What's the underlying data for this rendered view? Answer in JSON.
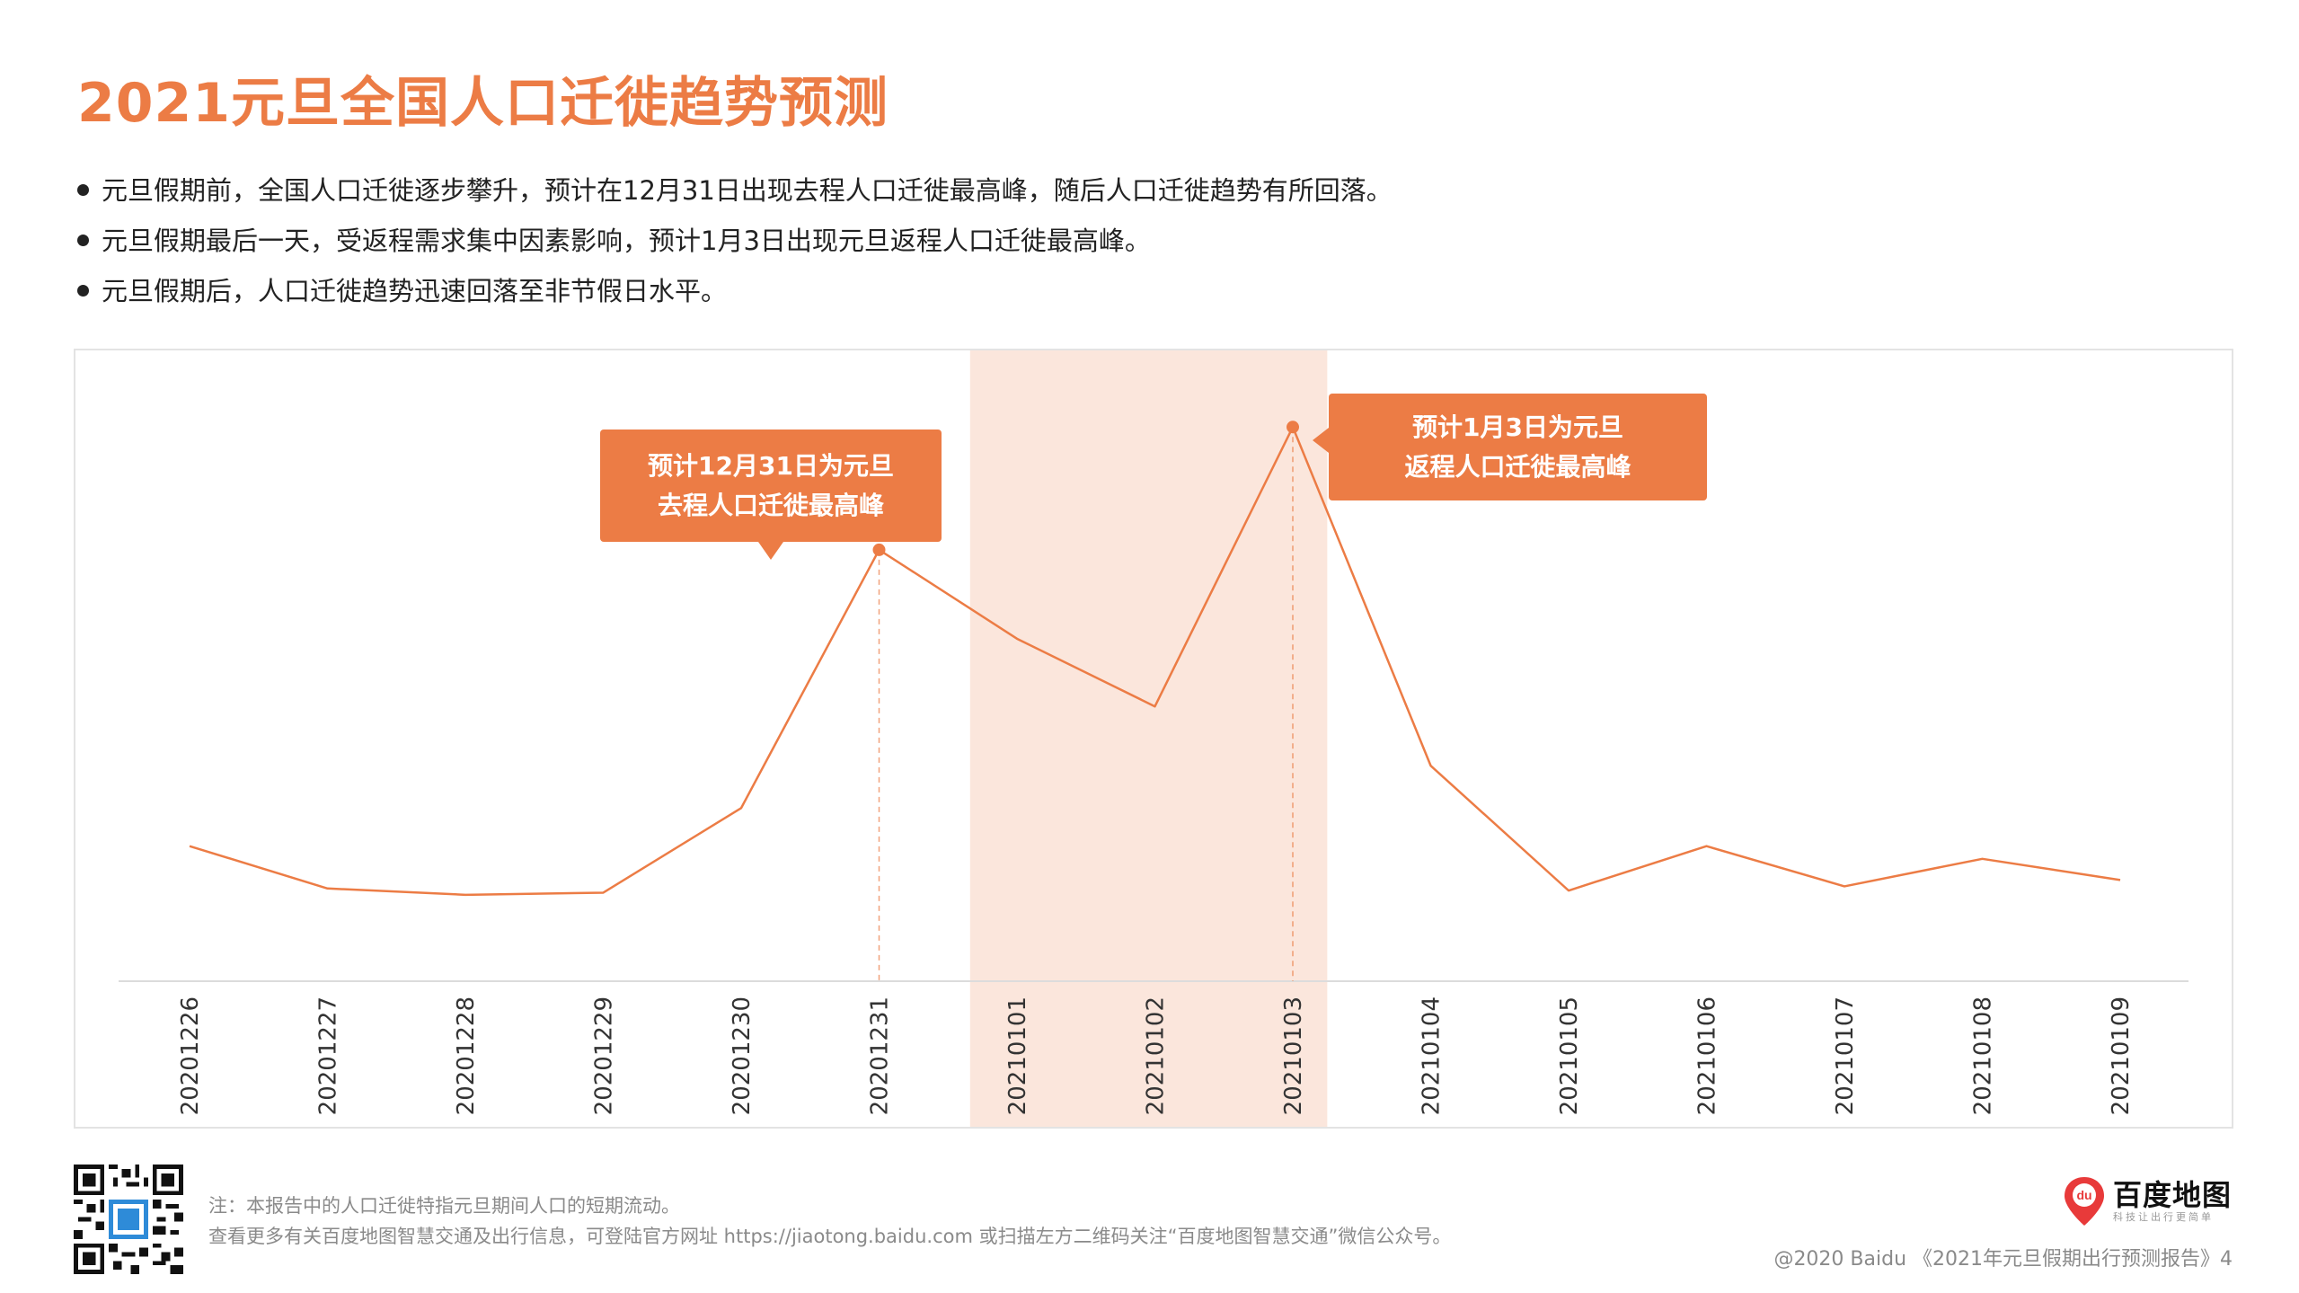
{
  "header": {
    "title": "2021元旦全国人口迁徙趋势预测",
    "bullets": [
      "元旦假期前，全国人口迁徙逐步攀升，预计在12月31日出现去程人口迁徙最高峰，随后人口迁徙趋势有所回落。",
      "元旦假期最后一天，受返程需求集中因素影响，预计1月3日出现元旦返程人口迁徙最高峰。",
      "元旦假期后，人口迁徙趋势迅速回落至非节假日水平。"
    ]
  },
  "chart_data": {
    "type": "line",
    "categories": [
      "20201226",
      "20201227",
      "20201228",
      "20201229",
      "20201230",
      "20201231",
      "20210101",
      "20210102",
      "20210103",
      "20210104",
      "20210105",
      "20210106",
      "20210107",
      "20210108",
      "20210109"
    ],
    "values": [
      30,
      20,
      18.5,
      19,
      39,
      100,
      79,
      63,
      129,
      49,
      19.5,
      30,
      20.5,
      27,
      22
    ],
    "ylim": [
      0,
      135
    ],
    "y_axis_shown": false,
    "grid": false,
    "highlight_range": [
      "20210101",
      "20210103"
    ],
    "annotations": [
      {
        "category": "20201231",
        "lines": [
          "预计12月31日为元旦",
          "去程人口迁徙最高峰"
        ]
      },
      {
        "category": "20210103",
        "lines": [
          "预计1月3日为元旦",
          "返程人口迁徙最高峰"
        ]
      }
    ],
    "colors": {
      "line": "#ec7c45",
      "highlight": "#fbe6dc",
      "axis": "#dcdcdc",
      "label": "#333333"
    }
  },
  "footer": {
    "qr_icon": "qr-code-icon",
    "note": "注：本报告中的人口迁徙特指元旦期间人口的短期流动。",
    "more_info": "查看更多有关百度地图智慧交通及出行信息，可登陆官方网址 https://jiaotong.baidu.com 或扫描左方二维码关注“百度地图智慧交通”微信公众号。",
    "logo_name": "百度地图",
    "logo_slogan": "科技让出行更简单",
    "logo_pin_text": "du",
    "copyright": "@2020 Baidu 《2021年元旦假期出行预测报告》4"
  }
}
